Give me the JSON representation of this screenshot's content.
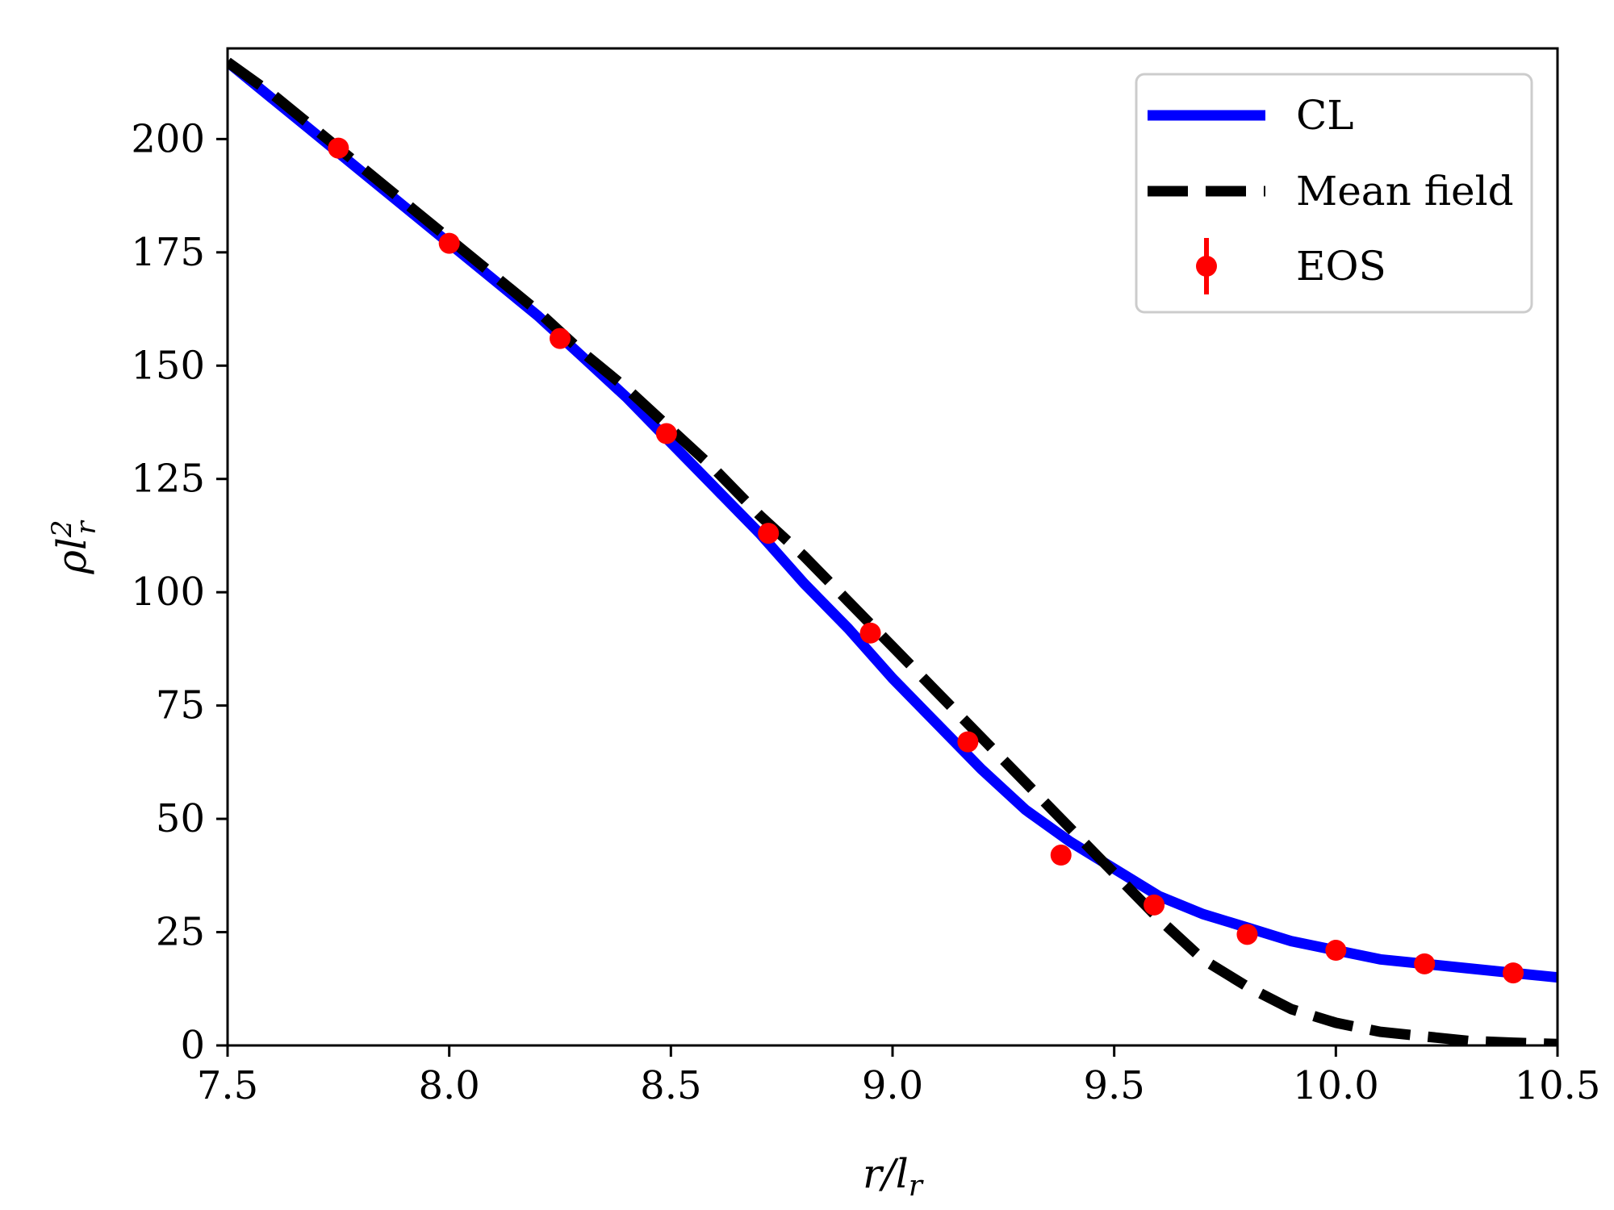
{
  "chart_data": {
    "type": "line",
    "title": "",
    "xlabel": "r/l_r",
    "ylabel": "ρl_r^2",
    "xlim": [
      7.5,
      10.5
    ],
    "ylim": [
      0,
      220
    ],
    "xticks": [
      7.5,
      8.0,
      8.5,
      9.0,
      9.5,
      10.0,
      10.5
    ],
    "xtick_labels": [
      "7.5",
      "8.0",
      "8.5",
      "9.0",
      "9.5",
      "10.0",
      "10.5"
    ],
    "yticks": [
      0,
      25,
      50,
      75,
      100,
      125,
      150,
      175,
      200
    ],
    "ytick_labels": [
      "0",
      "25",
      "50",
      "75",
      "100",
      "125",
      "150",
      "175",
      "200"
    ],
    "grid": false,
    "legend_position": "top-right",
    "series": [
      {
        "name": "CL",
        "style": "solid",
        "color": "#0000ff",
        "x": [
          7.5,
          7.6,
          7.7,
          7.8,
          7.9,
          8.0,
          8.1,
          8.2,
          8.3,
          8.4,
          8.5,
          8.6,
          8.7,
          8.8,
          8.9,
          9.0,
          9.1,
          9.2,
          9.3,
          9.4,
          9.5,
          9.6,
          9.7,
          9.8,
          9.9,
          10.0,
          10.1,
          10.2,
          10.3,
          10.4,
          10.5
        ],
        "y": [
          217,
          209,
          201,
          193,
          185,
          177,
          169,
          161,
          152,
          143,
          133,
          123,
          113,
          102,
          92,
          81,
          71,
          61,
          52,
          45,
          39,
          33,
          29,
          26,
          23,
          21,
          19,
          18,
          17,
          16,
          15
        ]
      },
      {
        "name": "Mean field",
        "style": "dashed",
        "color": "#000000",
        "x": [
          7.5,
          7.6,
          7.7,
          7.8,
          7.9,
          8.0,
          8.1,
          8.2,
          8.3,
          8.4,
          8.5,
          8.6,
          8.7,
          8.8,
          8.9,
          9.0,
          9.1,
          9.2,
          9.3,
          9.4,
          9.5,
          9.6,
          9.7,
          9.8,
          9.9,
          10.0,
          10.1,
          10.2,
          10.3,
          10.4,
          10.5
        ],
        "y": [
          217,
          210,
          202,
          194,
          186,
          178,
          170,
          162,
          153,
          145,
          136,
          127,
          117,
          108,
          98,
          88,
          78,
          68,
          58,
          48,
          38,
          28,
          19,
          13,
          8,
          5,
          3,
          2,
          1,
          0.6,
          0.3
        ]
      },
      {
        "name": "EOS",
        "style": "markers",
        "color": "#ff0000",
        "x": [
          7.75,
          8.0,
          8.25,
          8.49,
          8.72,
          8.95,
          9.17,
          9.38,
          9.59,
          9.8,
          10.0,
          10.2,
          10.4
        ],
        "y": [
          198,
          177,
          156,
          135,
          113,
          91,
          67,
          42,
          31,
          24.5,
          21,
          18,
          16
        ]
      }
    ]
  }
}
